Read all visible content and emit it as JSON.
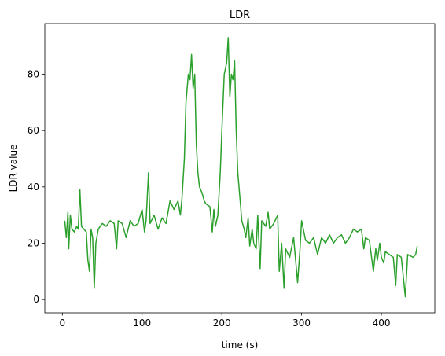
{
  "chart_data": {
    "type": "line",
    "title": "LDR",
    "xlabel": "time (s)",
    "ylabel": "LDR value",
    "x": [
      3,
      5,
      7,
      8,
      10,
      12,
      15,
      18,
      20,
      22,
      24,
      27,
      30,
      32,
      34,
      36,
      38,
      40,
      42,
      45,
      50,
      55,
      60,
      65,
      68,
      70,
      75,
      80,
      85,
      90,
      95,
      100,
      103,
      105,
      108,
      110,
      115,
      120,
      125,
      130,
      135,
      140,
      145,
      148,
      150,
      153,
      155,
      158,
      160,
      162,
      164,
      166,
      168,
      170,
      172,
      175,
      178,
      180,
      185,
      188,
      190,
      192,
      195,
      198,
      200,
      203,
      206,
      208,
      210,
      212,
      214,
      216,
      218,
      220,
      223,
      225,
      228,
      230,
      233,
      235,
      238,
      240,
      243,
      245,
      248,
      250,
      255,
      258,
      260,
      265,
      270,
      272,
      275,
      278,
      280,
      285,
      290,
      295,
      298,
      300,
      305,
      310,
      315,
      320,
      325,
      330,
      335,
      340,
      345,
      350,
      355,
      360,
      365,
      370,
      375,
      378,
      380,
      385,
      390,
      393,
      395,
      398,
      400,
      403,
      405,
      410,
      415,
      418,
      420,
      425,
      430,
      433,
      440,
      443,
      445
    ],
    "series": [
      {
        "name": "LDR",
        "color": "#2ca02c",
        "values": [
          28,
          22,
          31,
          18,
          30,
          25,
          24,
          26,
          25,
          39,
          26,
          25,
          24,
          14,
          10,
          25,
          22,
          4,
          20,
          25,
          27,
          26,
          28,
          27,
          18,
          28,
          27,
          22,
          28,
          26,
          27,
          32,
          24,
          28,
          45,
          27,
          30,
          25,
          29,
          27,
          35,
          32,
          35,
          30,
          36,
          50,
          70,
          80,
          78,
          87,
          75,
          80,
          55,
          45,
          40,
          38,
          35,
          34,
          33,
          24,
          32,
          26,
          30,
          45,
          60,
          80,
          84,
          93,
          72,
          80,
          78,
          85,
          60,
          45,
          35,
          28,
          25,
          22,
          29,
          19,
          25,
          20,
          18,
          30,
          11,
          28,
          26,
          31,
          25,
          27,
          30,
          10,
          20,
          4,
          18,
          15,
          22,
          6,
          18,
          28,
          21,
          20,
          22,
          16,
          22,
          20,
          23,
          20,
          22,
          23,
          20,
          22,
          25,
          24,
          25,
          18,
          22,
          21,
          10,
          18,
          14,
          20,
          15,
          13,
          17,
          16,
          15,
          5,
          16,
          15,
          1,
          16,
          15,
          16,
          19
        ]
      }
    ],
    "xlim": [
      -22,
      467
    ],
    "ylim": [
      -4.7,
      98
    ],
    "xticks": [
      0,
      100,
      200,
      300,
      400
    ],
    "yticks": [
      0,
      20,
      40,
      60,
      80
    ]
  }
}
